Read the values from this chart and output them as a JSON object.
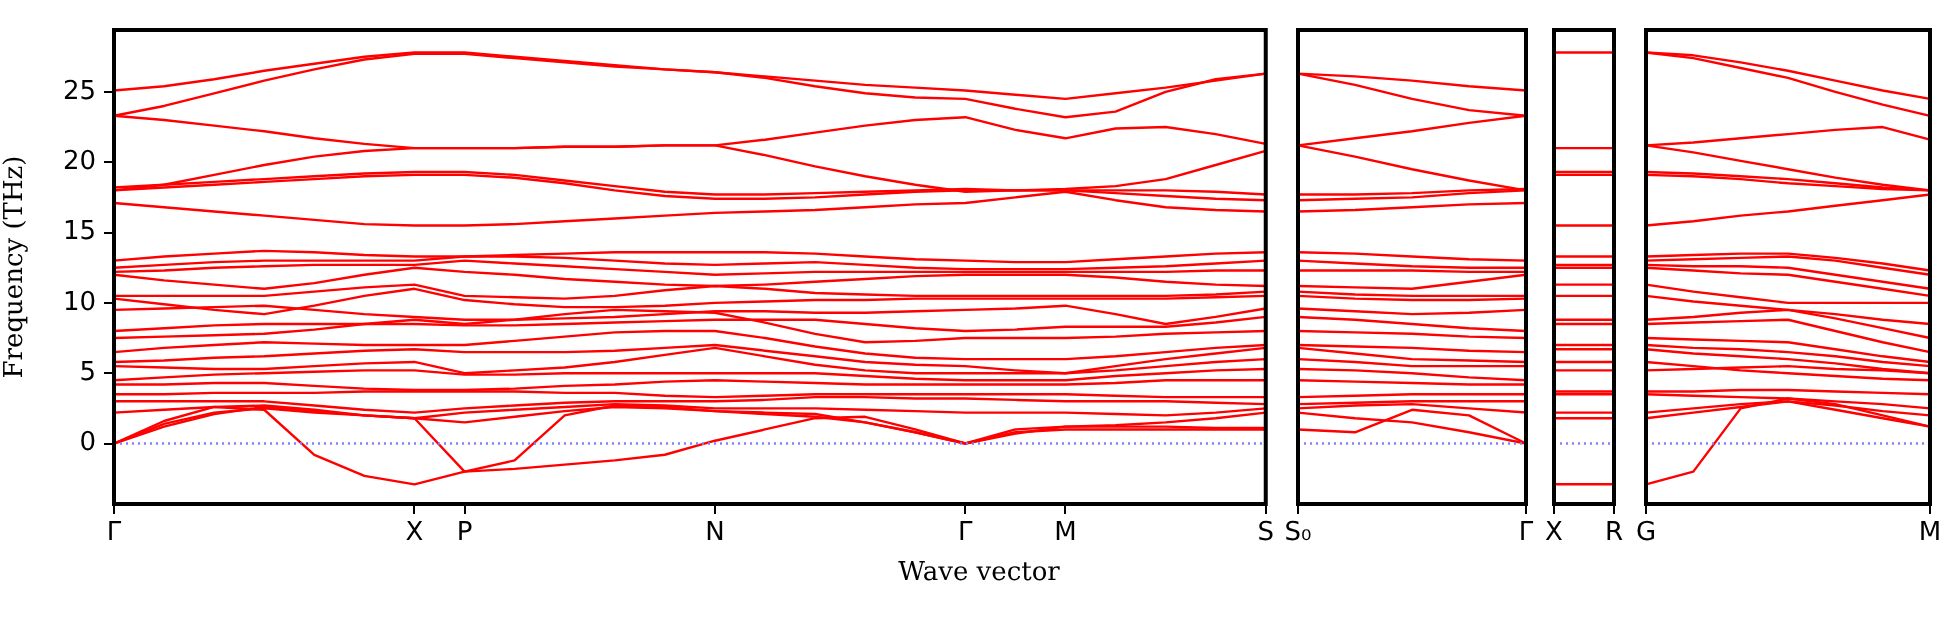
{
  "chart_data": [
    {
      "type": "line",
      "xlabel": "Wave vector",
      "ylabel": "Frequency (THz)",
      "ylim": [
        -4.3,
        29.4
      ],
      "yticks": [
        0,
        5,
        10,
        15,
        20,
        25
      ],
      "grid": false,
      "marker": "none",
      "line_style": "solid",
      "ref_lines": [
        {
          "axis": "y",
          "value": 0,
          "color": "#8080ff",
          "line_style": "dotted"
        }
      ],
      "categories": [
        "Γ",
        null,
        null,
        null,
        null,
        null,
        "X",
        "P",
        null,
        null,
        null,
        null,
        "N",
        null,
        null,
        null,
        null,
        "Γ",
        null,
        "M",
        null,
        null,
        null,
        "S"
      ],
      "series": [
        {
          "color": "#ff0000",
          "values": [
            25.1,
            25.4,
            25.9,
            26.5,
            27.0,
            27.5,
            27.8,
            27.8,
            27.5,
            27.2,
            26.9,
            26.6,
            26.4,
            26.1,
            25.8,
            25.5,
            25.3,
            25.1,
            24.8,
            24.5,
            24.9,
            25.3,
            25.8,
            26.3
          ]
        },
        {
          "color": "#ff0000",
          "values": [
            23.3,
            24.0,
            24.9,
            25.8,
            26.6,
            27.3,
            27.7,
            27.7,
            27.4,
            27.1,
            26.8,
            26.6,
            26.4,
            26.0,
            25.4,
            24.9,
            24.6,
            24.5,
            23.8,
            23.2,
            23.6,
            25.0,
            25.9,
            26.3
          ]
        },
        {
          "color": "#ff0000",
          "values": [
            23.3,
            23.0,
            22.6,
            22.2,
            21.7,
            21.3,
            21.0,
            21.0,
            21.0,
            21.1,
            21.1,
            21.2,
            21.2,
            21.6,
            22.1,
            22.6,
            23.0,
            23.2,
            22.3,
            21.7,
            22.4,
            22.5,
            22.0,
            21.3
          ]
        },
        {
          "color": "#ff0000",
          "values": [
            18.0,
            18.4,
            19.1,
            19.8,
            20.4,
            20.8,
            21.0,
            21.0,
            21.0,
            21.1,
            21.1,
            21.2,
            21.2,
            20.5,
            19.7,
            19.0,
            18.4,
            17.9,
            18.0,
            18.1,
            18.3,
            18.8,
            19.8,
            20.8
          ]
        },
        {
          "color": "#ff0000",
          "values": [
            18.2,
            18.4,
            18.6,
            18.8,
            19.0,
            19.2,
            19.3,
            19.3,
            19.1,
            18.7,
            18.3,
            17.9,
            17.7,
            17.7,
            17.8,
            17.9,
            18.0,
            18.1,
            18.0,
            18.0,
            18.0,
            18.0,
            17.9,
            17.7
          ]
        },
        {
          "color": "#ff0000",
          "values": [
            18.0,
            18.2,
            18.4,
            18.6,
            18.8,
            19.0,
            19.1,
            19.1,
            18.9,
            18.5,
            18.0,
            17.6,
            17.4,
            17.4,
            17.5,
            17.7,
            17.9,
            18.0,
            18.0,
            18.0,
            17.8,
            17.6,
            17.4,
            17.3
          ]
        },
        {
          "color": "#ff0000",
          "values": [
            17.1,
            16.8,
            16.5,
            16.2,
            15.9,
            15.6,
            15.5,
            15.5,
            15.6,
            15.8,
            16.0,
            16.2,
            16.4,
            16.5,
            16.6,
            16.8,
            17.0,
            17.1,
            17.5,
            17.9,
            17.3,
            16.8,
            16.6,
            16.5
          ]
        },
        {
          "color": "#ff0000",
          "values": [
            13.0,
            13.3,
            13.5,
            13.7,
            13.6,
            13.4,
            13.3,
            13.3,
            13.4,
            13.5,
            13.6,
            13.6,
            13.6,
            13.6,
            13.5,
            13.3,
            13.1,
            13.0,
            12.9,
            12.9,
            13.1,
            13.3,
            13.5,
            13.6
          ]
        },
        {
          "color": "#ff0000",
          "values": [
            12.5,
            12.7,
            12.9,
            13.0,
            13.0,
            13.0,
            13.0,
            13.3,
            13.3,
            13.2,
            13.0,
            12.8,
            12.7,
            12.8,
            12.9,
            12.7,
            12.5,
            12.4,
            12.4,
            12.4,
            12.5,
            12.6,
            12.8,
            13.0
          ]
        },
        {
          "color": "#ff0000",
          "values": [
            12.2,
            12.3,
            12.5,
            12.6,
            12.7,
            12.7,
            12.7,
            13.0,
            12.8,
            12.6,
            12.4,
            12.2,
            12.0,
            12.1,
            12.2,
            12.2,
            12.2,
            12.2,
            12.2,
            12.2,
            12.2,
            12.2,
            12.3,
            12.3
          ]
        },
        {
          "color": "#ff0000",
          "values": [
            12.0,
            11.6,
            11.3,
            11.0,
            11.4,
            12.0,
            12.5,
            12.2,
            12.0,
            11.7,
            11.5,
            11.3,
            11.2,
            11.3,
            11.5,
            11.7,
            11.9,
            12.0,
            12.0,
            12.0,
            11.8,
            11.5,
            11.3,
            11.2
          ]
        },
        {
          "color": "#ff0000",
          "values": [
            10.5,
            10.5,
            10.5,
            10.5,
            10.8,
            11.1,
            11.3,
            10.5,
            10.4,
            10.3,
            10.5,
            10.9,
            11.2,
            11.0,
            10.7,
            10.6,
            10.5,
            10.5,
            10.5,
            10.5,
            10.5,
            10.5,
            10.6,
            10.8
          ]
        },
        {
          "color": "#ff0000",
          "values": [
            10.3,
            9.9,
            9.5,
            9.2,
            9.8,
            10.5,
            11.0,
            10.2,
            9.9,
            9.7,
            9.7,
            9.8,
            10.0,
            10.1,
            10.2,
            10.2,
            10.3,
            10.3,
            10.3,
            10.3,
            10.3,
            10.3,
            10.4,
            10.5
          ]
        },
        {
          "color": "#ff0000",
          "values": [
            9.5,
            9.6,
            9.7,
            9.8,
            9.5,
            9.2,
            9.0,
            8.8,
            8.8,
            8.9,
            9.0,
            9.2,
            9.4,
            9.4,
            9.3,
            9.3,
            9.4,
            9.5,
            9.6,
            9.8,
            9.2,
            8.5,
            9.0,
            9.6
          ]
        },
        {
          "color": "#ff0000",
          "values": [
            8.0,
            8.2,
            8.4,
            8.5,
            8.5,
            8.5,
            8.5,
            8.4,
            8.4,
            8.5,
            8.6,
            8.7,
            8.8,
            8.8,
            8.8,
            8.5,
            8.2,
            8.0,
            8.1,
            8.3,
            8.3,
            8.3,
            8.6,
            9.0
          ]
        },
        {
          "color": "#ff0000",
          "values": [
            7.5,
            7.6,
            7.7,
            7.8,
            8.1,
            8.5,
            8.8,
            8.5,
            8.8,
            9.2,
            9.5,
            9.4,
            9.3,
            8.6,
            7.8,
            7.2,
            7.3,
            7.5,
            7.5,
            7.5,
            7.6,
            7.8,
            7.9,
            8.0
          ]
        },
        {
          "color": "#ff0000",
          "values": [
            6.5,
            6.8,
            7.0,
            7.2,
            7.1,
            7.0,
            7.0,
            7.0,
            7.3,
            7.6,
            7.9,
            8.0,
            8.0,
            7.5,
            6.9,
            6.4,
            6.1,
            6.0,
            6.0,
            6.0,
            6.2,
            6.5,
            6.8,
            7.0
          ]
        },
        {
          "color": "#ff0000",
          "values": [
            5.8,
            5.9,
            6.1,
            6.2,
            6.4,
            6.6,
            6.7,
            6.5,
            6.5,
            6.5,
            6.6,
            6.8,
            7.0,
            6.6,
            6.2,
            5.8,
            5.6,
            5.5,
            5.2,
            5.0,
            5.5,
            6.0,
            6.4,
            6.8
          ]
        },
        {
          "color": "#ff0000",
          "values": [
            5.5,
            5.4,
            5.3,
            5.3,
            5.5,
            5.7,
            5.8,
            5.0,
            5.2,
            5.4,
            5.8,
            6.3,
            6.8,
            6.2,
            5.6,
            5.2,
            5.0,
            5.0,
            5.0,
            5.0,
            5.2,
            5.5,
            5.8,
            6.0
          ]
        },
        {
          "color": "#ff0000",
          "values": [
            4.5,
            4.7,
            4.9,
            5.0,
            5.1,
            5.2,
            5.2,
            4.9,
            4.9,
            5.0,
            5.0,
            5.0,
            5.0,
            5.0,
            5.0,
            4.8,
            4.6,
            4.5,
            4.5,
            4.5,
            4.8,
            5.0,
            5.2,
            5.3
          ]
        },
        {
          "color": "#ff0000",
          "values": [
            4.2,
            4.2,
            4.3,
            4.3,
            4.1,
            3.9,
            3.8,
            3.8,
            3.9,
            4.1,
            4.2,
            4.4,
            4.5,
            4.4,
            4.3,
            4.2,
            4.2,
            4.2,
            4.2,
            4.2,
            4.3,
            4.5,
            4.5,
            4.5
          ]
        },
        {
          "color": "#ff0000",
          "values": [
            3.5,
            3.5,
            3.6,
            3.6,
            3.6,
            3.7,
            3.7,
            3.7,
            3.7,
            3.6,
            3.6,
            3.4,
            3.3,
            3.4,
            3.5,
            3.5,
            3.5,
            3.5,
            3.5,
            3.5,
            3.4,
            3.3,
            3.3,
            3.3
          ]
        },
        {
          "color": "#ff0000",
          "values": [
            3.0,
            3.0,
            3.0,
            3.0,
            2.7,
            2.4,
            2.2,
            2.5,
            2.7,
            2.9,
            3.0,
            3.0,
            3.0,
            3.1,
            3.3,
            3.3,
            3.2,
            3.2,
            3.1,
            3.0,
            3.0,
            3.0,
            2.9,
            2.8
          ]
        },
        {
          "color": "#ff0000",
          "values": [
            2.2,
            2.4,
            2.6,
            2.7,
            2.4,
            2.0,
            1.8,
            2.2,
            2.4,
            2.6,
            2.8,
            2.7,
            2.5,
            2.5,
            2.5,
            2.4,
            2.3,
            2.2,
            2.2,
            2.2,
            2.1,
            2.0,
            2.2,
            2.5
          ]
        },
        {
          "color": "#ff0000",
          "values": [
            0,
            1.2,
            2.1,
            2.6,
            2.3,
            2.0,
            1.8,
            1.5,
            1.9,
            2.3,
            2.6,
            2.5,
            2.3,
            2.1,
            1.9,
            1.5,
            0.8,
            0,
            0.7,
            1.2,
            1.3,
            1.5,
            1.8,
            2.2
          ]
        },
        {
          "color": "#ff0000",
          "values": [
            0,
            1.6,
            2.6,
            2.4,
            -0.8,
            -2.3,
            -2.9,
            -2.0,
            -1.8,
            -1.5,
            -1.2,
            -0.8,
            0.2,
            1.0,
            1.8,
            1.9,
            1.0,
            0,
            1.0,
            1.2,
            1.2,
            1.2,
            1.1,
            1.1
          ]
        },
        {
          "color": "#ff0000",
          "values": [
            0,
            1.4,
            2.2,
            2.5,
            2.2,
            2.0,
            1.8,
            -2.0,
            -1.2,
            2.0,
            2.7,
            2.6,
            2.3,
            2.2,
            2.1,
            1.5,
            0.8,
            0,
            0.8,
            1.0,
            1.0,
            1.0,
            1.0,
            1.0
          ]
        }
      ]
    },
    {
      "type": "line",
      "tick_labels": "x",
      "ylim": [
        -4.3,
        29.4
      ],
      "yticks": [
        0,
        5,
        10,
        15,
        20,
        25
      ],
      "grid": false,
      "marker": "none",
      "line_style": "solid",
      "ref_lines": [
        {
          "axis": "y",
          "value": 0,
          "color": "#8080ff",
          "line_style": "dotted"
        }
      ],
      "categories": [
        "S₀",
        null,
        null,
        null,
        "Γ"
      ],
      "series": [
        {
          "color": "#ff0000",
          "values": [
            26.3,
            26.1,
            25.8,
            25.4,
            25.1
          ]
        },
        {
          "color": "#ff0000",
          "values": [
            26.3,
            25.5,
            24.5,
            23.7,
            23.3
          ]
        },
        {
          "color": "#ff0000",
          "values": [
            21.2,
            21.7,
            22.2,
            22.8,
            23.3
          ]
        },
        {
          "color": "#ff0000",
          "values": [
            21.2,
            20.4,
            19.5,
            18.7,
            18.0
          ]
        },
        {
          "color": "#ff0000",
          "values": [
            17.7,
            17.7,
            17.8,
            18.0,
            18.1
          ]
        },
        {
          "color": "#ff0000",
          "values": [
            17.3,
            17.4,
            17.5,
            17.8,
            18.0
          ]
        },
        {
          "color": "#ff0000",
          "values": [
            16.5,
            16.6,
            16.8,
            17.0,
            17.1
          ]
        },
        {
          "color": "#ff0000",
          "values": [
            13.6,
            13.5,
            13.3,
            13.1,
            13.0
          ]
        },
        {
          "color": "#ff0000",
          "values": [
            13.0,
            12.8,
            12.6,
            12.5,
            12.5
          ]
        },
        {
          "color": "#ff0000",
          "values": [
            12.3,
            12.3,
            12.3,
            12.2,
            12.2
          ]
        },
        {
          "color": "#ff0000",
          "values": [
            11.2,
            11.1,
            11.0,
            11.5,
            12.0
          ]
        },
        {
          "color": "#ff0000",
          "values": [
            10.8,
            10.6,
            10.5,
            10.5,
            10.5
          ]
        },
        {
          "color": "#ff0000",
          "values": [
            10.5,
            10.3,
            10.2,
            10.2,
            10.3
          ]
        },
        {
          "color": "#ff0000",
          "values": [
            9.6,
            9.4,
            9.2,
            9.3,
            9.5
          ]
        },
        {
          "color": "#ff0000",
          "values": [
            9.0,
            8.8,
            8.5,
            8.2,
            8.0
          ]
        },
        {
          "color": "#ff0000",
          "values": [
            8.0,
            7.9,
            7.8,
            7.6,
            7.5
          ]
        },
        {
          "color": "#ff0000",
          "values": [
            7.0,
            6.9,
            6.8,
            6.6,
            6.5
          ]
        },
        {
          "color": "#ff0000",
          "values": [
            6.8,
            6.4,
            6.0,
            5.9,
            5.8
          ]
        },
        {
          "color": "#ff0000",
          "values": [
            6.0,
            5.8,
            5.5,
            5.5,
            5.5
          ]
        },
        {
          "color": "#ff0000",
          "values": [
            5.3,
            5.2,
            5.0,
            4.7,
            4.5
          ]
        },
        {
          "color": "#ff0000",
          "values": [
            4.5,
            4.4,
            4.3,
            4.2,
            4.2
          ]
        },
        {
          "color": "#ff0000",
          "values": [
            3.3,
            3.4,
            3.5,
            3.5,
            3.5
          ]
        },
        {
          "color": "#ff0000",
          "values": [
            2.8,
            2.9,
            3.0,
            3.0,
            3.0
          ]
        },
        {
          "color": "#ff0000",
          "values": [
            2.5,
            2.7,
            2.8,
            2.5,
            2.2
          ]
        },
        {
          "color": "#ff0000",
          "values": [
            1.0,
            0.8,
            2.4,
            2.0,
            0
          ]
        },
        {
          "color": "#ff0000",
          "values": [
            2.2,
            1.8,
            1.5,
            0.8,
            0
          ]
        }
      ]
    },
    {
      "type": "line",
      "tick_labels": "x",
      "ylim": [
        -4.3,
        29.4
      ],
      "yticks": [
        0,
        5,
        10,
        15,
        20,
        25
      ],
      "grid": false,
      "marker": "none",
      "line_style": "solid",
      "ref_lines": [
        {
          "axis": "y",
          "value": 0,
          "color": "#8080ff",
          "line_style": "dotted"
        }
      ],
      "categories": [
        "X",
        "R"
      ],
      "series": [
        {
          "color": "#ff0000",
          "values": [
            27.8,
            27.8
          ]
        },
        {
          "color": "#ff0000",
          "values": [
            21.0,
            21.0
          ]
        },
        {
          "color": "#ff0000",
          "values": [
            19.3,
            19.3
          ]
        },
        {
          "color": "#ff0000",
          "values": [
            19.1,
            19.1
          ]
        },
        {
          "color": "#ff0000",
          "values": [
            15.5,
            15.5
          ]
        },
        {
          "color": "#ff0000",
          "values": [
            13.3,
            13.3
          ]
        },
        {
          "color": "#ff0000",
          "values": [
            12.7,
            12.7
          ]
        },
        {
          "color": "#ff0000",
          "values": [
            12.5,
            12.5
          ]
        },
        {
          "color": "#ff0000",
          "values": [
            11.3,
            11.3
          ]
        },
        {
          "color": "#ff0000",
          "values": [
            10.5,
            10.5
          ]
        },
        {
          "color": "#ff0000",
          "values": [
            8.8,
            8.8
          ]
        },
        {
          "color": "#ff0000",
          "values": [
            8.5,
            8.5
          ]
        },
        {
          "color": "#ff0000",
          "values": [
            7.0,
            7.0
          ]
        },
        {
          "color": "#ff0000",
          "values": [
            6.7,
            6.7
          ]
        },
        {
          "color": "#ff0000",
          "values": [
            5.8,
            5.8
          ]
        },
        {
          "color": "#ff0000",
          "values": [
            5.2,
            5.2
          ]
        },
        {
          "color": "#ff0000",
          "values": [
            3.7,
            3.7
          ]
        },
        {
          "color": "#ff0000",
          "values": [
            3.5,
            3.5
          ]
        },
        {
          "color": "#ff0000",
          "values": [
            2.2,
            2.2
          ]
        },
        {
          "color": "#ff0000",
          "values": [
            1.8,
            1.8
          ]
        },
        {
          "color": "#ff0000",
          "values": [
            -2.9,
            -2.9
          ]
        }
      ]
    },
    {
      "type": "line",
      "tick_labels": "x",
      "ylim": [
        -4.3,
        29.4
      ],
      "yticks": [
        0,
        5,
        10,
        15,
        20,
        25
      ],
      "grid": false,
      "marker": "none",
      "line_style": "solid",
      "ref_lines": [
        {
          "axis": "y",
          "value": 0,
          "color": "#8080ff",
          "line_style": "dotted"
        }
      ],
      "categories": [
        "G",
        null,
        null,
        null,
        null,
        null,
        "M"
      ],
      "series": [
        {
          "color": "#ff0000",
          "values": [
            27.8,
            27.6,
            27.1,
            26.5,
            25.8,
            25.1,
            24.5
          ]
        },
        {
          "color": "#ff0000",
          "values": [
            27.8,
            27.4,
            26.7,
            26.0,
            25.0,
            24.1,
            23.3
          ]
        },
        {
          "color": "#ff0000",
          "values": [
            21.2,
            21.4,
            21.7,
            22.0,
            22.3,
            22.5,
            21.6
          ]
        },
        {
          "color": "#ff0000",
          "values": [
            21.2,
            20.7,
            20.1,
            19.5,
            18.9,
            18.4,
            18.0
          ]
        },
        {
          "color": "#ff0000",
          "values": [
            19.3,
            19.2,
            19.0,
            18.8,
            18.5,
            18.2,
            18.0
          ]
        },
        {
          "color": "#ff0000",
          "values": [
            19.1,
            19.0,
            18.8,
            18.5,
            18.3,
            18.1,
            18.0
          ]
        },
        {
          "color": "#ff0000",
          "values": [
            15.5,
            15.8,
            16.2,
            16.5,
            16.9,
            17.3,
            17.7
          ]
        },
        {
          "color": "#ff0000",
          "values": [
            13.3,
            13.4,
            13.5,
            13.5,
            13.2,
            12.8,
            12.3
          ]
        },
        {
          "color": "#ff0000",
          "values": [
            13.0,
            13.1,
            13.2,
            13.3,
            13.0,
            12.5,
            12.0
          ]
        },
        {
          "color": "#ff0000",
          "values": [
            12.7,
            12.6,
            12.6,
            12.5,
            12.0,
            11.5,
            11.0
          ]
        },
        {
          "color": "#ff0000",
          "values": [
            12.5,
            12.3,
            12.1,
            12.0,
            11.5,
            11.0,
            10.5
          ]
        },
        {
          "color": "#ff0000",
          "values": [
            11.3,
            10.8,
            10.4,
            10.0,
            10.0,
            10.0,
            10.0
          ]
        },
        {
          "color": "#ff0000",
          "values": [
            10.5,
            10.1,
            9.8,
            9.5,
            9.2,
            8.8,
            8.5
          ]
        },
        {
          "color": "#ff0000",
          "values": [
            8.8,
            9.0,
            9.3,
            9.5,
            8.9,
            8.2,
            7.5
          ]
        },
        {
          "color": "#ff0000",
          "values": [
            8.5,
            8.6,
            8.7,
            8.8,
            8.0,
            7.2,
            6.5
          ]
        },
        {
          "color": "#ff0000",
          "values": [
            7.5,
            7.4,
            7.3,
            7.2,
            6.7,
            6.2,
            5.8
          ]
        },
        {
          "color": "#ff0000",
          "values": [
            7.0,
            6.8,
            6.7,
            6.5,
            6.2,
            5.8,
            5.5
          ]
        },
        {
          "color": "#ff0000",
          "values": [
            6.7,
            6.4,
            6.2,
            6.0,
            5.7,
            5.3,
            5.0
          ]
        },
        {
          "color": "#ff0000",
          "values": [
            5.8,
            5.5,
            5.2,
            5.0,
            4.8,
            4.6,
            4.5
          ]
        },
        {
          "color": "#ff0000",
          "values": [
            5.2,
            5.3,
            5.4,
            5.5,
            5.3,
            5.2,
            5.0
          ]
        },
        {
          "color": "#ff0000",
          "values": [
            3.7,
            3.7,
            3.8,
            3.8,
            3.7,
            3.6,
            3.5
          ]
        },
        {
          "color": "#ff0000",
          "values": [
            3.5,
            3.4,
            3.3,
            3.2,
            3.0,
            2.8,
            2.5
          ]
        },
        {
          "color": "#ff0000",
          "values": [
            2.2,
            2.5,
            2.8,
            3.0,
            2.7,
            2.3,
            2.0
          ]
        },
        {
          "color": "#ff0000",
          "values": [
            1.8,
            2.2,
            2.6,
            3.0,
            2.4,
            1.8,
            1.2
          ]
        },
        {
          "color": "#ff0000",
          "values": [
            -2.9,
            -2.0,
            2.5,
            3.2,
            2.8,
            2.0,
            1.2
          ]
        }
      ]
    }
  ]
}
